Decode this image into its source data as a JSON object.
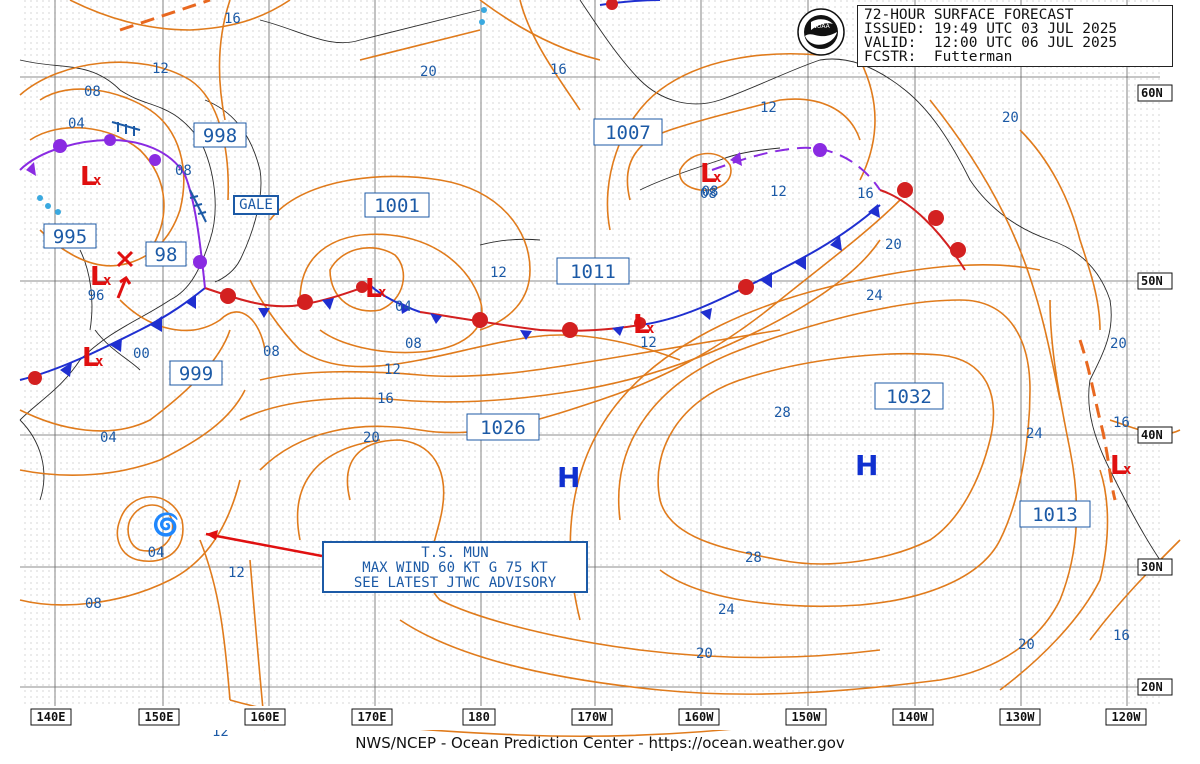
{
  "header": {
    "title": "72-HOUR SURFACE FORECAST",
    "issued": "ISSUED: 19:49 UTC 03 JUL 2025",
    "valid": "VALID:  12:00 UTC 06 JUL 2025",
    "forecaster": "FCSTR:  Futterman"
  },
  "logo_text": "NOAA",
  "credit": "NWS/NCEP - Ocean Prediction Center - https://ocean.weather.gov",
  "gale_label": "GALE",
  "tropical_storm": {
    "line1": "T.S. MUN",
    "line2": "MAX WIND 60 KT G 75 KT",
    "line3": "SEE LATEST JTWC ADVISORY",
    "pressure": "04"
  },
  "longitude_labels": [
    "140E",
    "150E",
    "160E",
    "170E",
    "180",
    "170W",
    "160W",
    "150W",
    "140W",
    "130W",
    "120W"
  ],
  "latitude_labels": [
    "60N",
    "50N",
    "40N",
    "30N",
    "20N"
  ],
  "pressure_centers": [
    {
      "type": "L",
      "value": "995"
    },
    {
      "type": "L",
      "value": "96"
    },
    {
      "type": "L",
      "value": "999"
    },
    {
      "type": "L",
      "value": "98"
    },
    {
      "type": "L",
      "value": "998"
    },
    {
      "type": "L",
      "value": "1001"
    },
    {
      "type": "L",
      "value": "08"
    },
    {
      "type": "L",
      "value": "1007"
    },
    {
      "type": "L",
      "value": "1011"
    },
    {
      "type": "H",
      "value": "1026"
    },
    {
      "type": "H",
      "value": "1032"
    },
    {
      "type": "L",
      "value": "1013"
    }
  ],
  "isobar_labels": [
    "16",
    "12",
    "08",
    "04",
    "08",
    "20",
    "16",
    "12",
    "20",
    "12",
    "16",
    "20",
    "04",
    "08",
    "12",
    "16",
    "20",
    "24",
    "28",
    "28",
    "24",
    "20",
    "00",
    "04",
    "08",
    "12",
    "08",
    "12",
    "12",
    "16",
    "20",
    "24",
    "20",
    "16",
    "16",
    "12",
    "08",
    "12",
    "20",
    "16"
  ],
  "colors": {
    "isobar": "#e07b1c",
    "isobar_label": "#1c5aa6",
    "warm_front": "#d32020",
    "cold_front": "#1f2fd0",
    "occluded_front": "#8a2be2",
    "low": "#e01010",
    "high": "#1030d0"
  }
}
